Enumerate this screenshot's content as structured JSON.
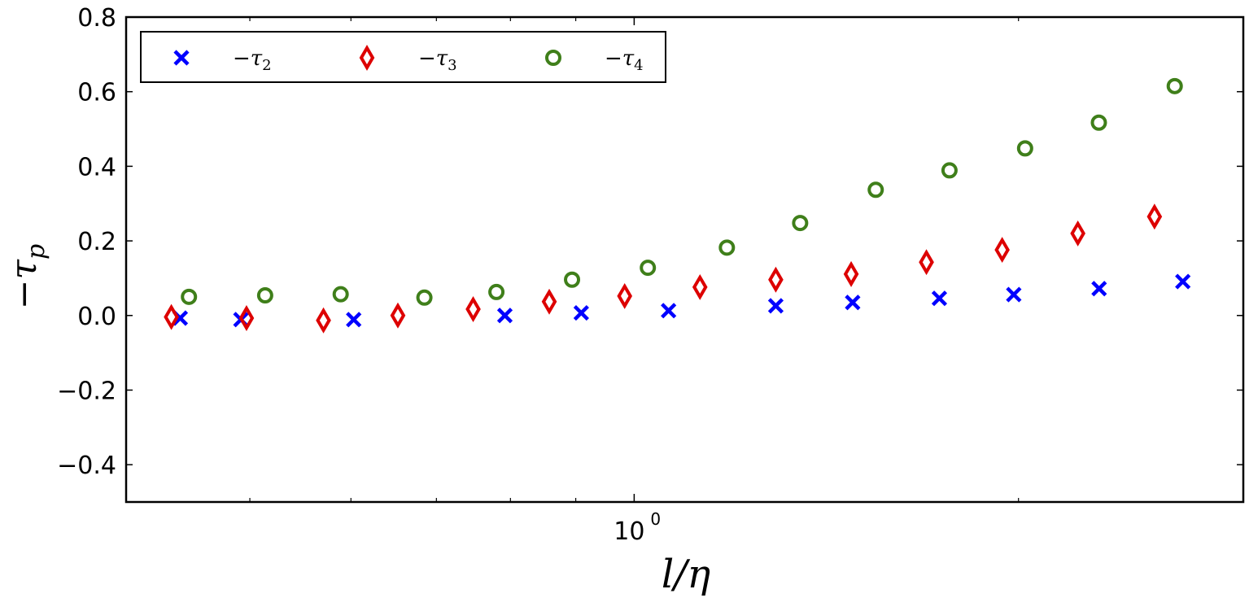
{
  "chart_data": {
    "type": "scatter",
    "title": "",
    "xlabel": "l/η",
    "ylabel": "−τ_p",
    "xscale": "log",
    "xlim": [
      0.4,
      3.0
    ],
    "ylim": [
      -0.5,
      0.8
    ],
    "grid": false,
    "legend_position": "upper left",
    "x_tick_labels": [
      {
        "value": 1.0,
        "label": "10",
        "exp": "0"
      }
    ],
    "x_minor_ticks": [
      0.5,
      0.6,
      0.7,
      0.8,
      0.9,
      2.0
    ],
    "y_ticks": [
      0.8,
      0.6,
      0.4,
      0.2,
      0.0,
      -0.2,
      -0.4
    ],
    "y_tick_labels": [
      "0.8",
      "0.6",
      "0.4",
      "0.2",
      "0.0",
      "−0.2",
      "−0.4"
    ],
    "series": [
      {
        "name": "−τ2",
        "label_base": "−τ",
        "label_sub": "2",
        "marker": "x",
        "color": "#0000ff",
        "x": [
          0.441,
          0.492,
          0.603,
          0.792,
          0.909,
          1.064,
          1.291,
          1.483,
          1.734,
          1.983,
          2.313,
          2.69
        ],
        "y": [
          -0.007,
          -0.011,
          -0.011,
          0.0,
          0.007,
          0.013,
          0.026,
          0.035,
          0.046,
          0.056,
          0.072,
          0.091
        ]
      },
      {
        "name": "−τ3",
        "label_base": "−τ",
        "label_sub": "3",
        "marker": "d",
        "color": "#dd0000",
        "x": [
          0.434,
          0.497,
          0.571,
          0.653,
          0.748,
          0.858,
          0.983,
          1.126,
          1.291,
          1.479,
          1.694,
          1.942,
          2.226,
          2.556
        ],
        "y": [
          -0.004,
          -0.007,
          -0.013,
          0.0,
          0.017,
          0.037,
          0.052,
          0.076,
          0.096,
          0.111,
          0.143,
          0.176,
          0.22,
          0.265
        ]
      },
      {
        "name": "−τ4",
        "label_base": "−τ",
        "label_sub": "4",
        "marker": "o",
        "color": "#3f7f1a",
        "x": [
          0.448,
          0.514,
          0.589,
          0.685,
          0.78,
          0.894,
          1.025,
          1.182,
          1.349,
          1.546,
          1.766,
          2.024,
          2.312,
          2.651
        ],
        "y": [
          0.05,
          0.054,
          0.057,
          0.048,
          0.063,
          0.096,
          0.128,
          0.182,
          0.248,
          0.337,
          0.389,
          0.448,
          0.517,
          0.615
        ]
      }
    ]
  }
}
